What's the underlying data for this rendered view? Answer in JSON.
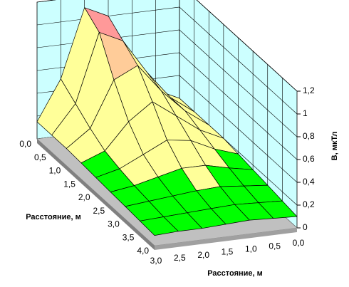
{
  "chart_data": {
    "type": "surface",
    "x_axis_label": "Расстояние, м",
    "y_axis_label": "Расстояние, м",
    "z_axis_label": "B, мкТл",
    "x_categories": [
      "3,0",
      "2,5",
      "2,0",
      "1,5",
      "1,0",
      "0,5",
      "0,0"
    ],
    "y_categories": [
      "0,0",
      "0,5",
      "1,0",
      "1,5",
      "2,0",
      "2,5",
      "3,0",
      "3,5",
      "4,0"
    ],
    "z": [
      [
        0.15,
        0.5,
        1.1,
        1.0,
        0.6,
        0.3,
        0.2
      ],
      [
        0.15,
        0.4,
        1.0,
        0.9,
        0.6,
        0.35,
        0.2
      ],
      [
        0.15,
        0.3,
        0.7,
        0.8,
        0.55,
        0.35,
        0.2
      ],
      [
        0.14,
        0.22,
        0.45,
        0.6,
        0.45,
        0.3,
        0.2
      ],
      [
        0.13,
        0.18,
        0.28,
        0.38,
        0.35,
        0.25,
        0.18
      ],
      [
        0.12,
        0.15,
        0.2,
        0.25,
        0.25,
        0.2,
        0.16
      ],
      [
        0.11,
        0.13,
        0.15,
        0.17,
        0.18,
        0.16,
        0.14
      ],
      [
        0.1,
        0.11,
        0.12,
        0.13,
        0.14,
        0.13,
        0.12
      ],
      [
        0.09,
        0.1,
        0.1,
        0.11,
        0.12,
        0.11,
        0.1
      ]
    ],
    "zlim": [
      0,
      1.2
    ],
    "zticks": [
      0,
      {
        "value": 0.2,
        "label": "0,2"
      },
      {
        "value": 0.4,
        "label": "0,4"
      },
      {
        "value": 0.6,
        "label": "0,6"
      },
      {
        "value": 0.8,
        "label": "0,8"
      },
      1,
      {
        "value": 1.2,
        "label": "1,2"
      }
    ],
    "band_colors": [
      "#00ff00",
      "#ffff99",
      "#ffff99",
      "#ffff99",
      "#ffcc99",
      "#ff9999"
    ],
    "wall_color": "#ccffff",
    "floor_color": "#c0c0c0"
  }
}
